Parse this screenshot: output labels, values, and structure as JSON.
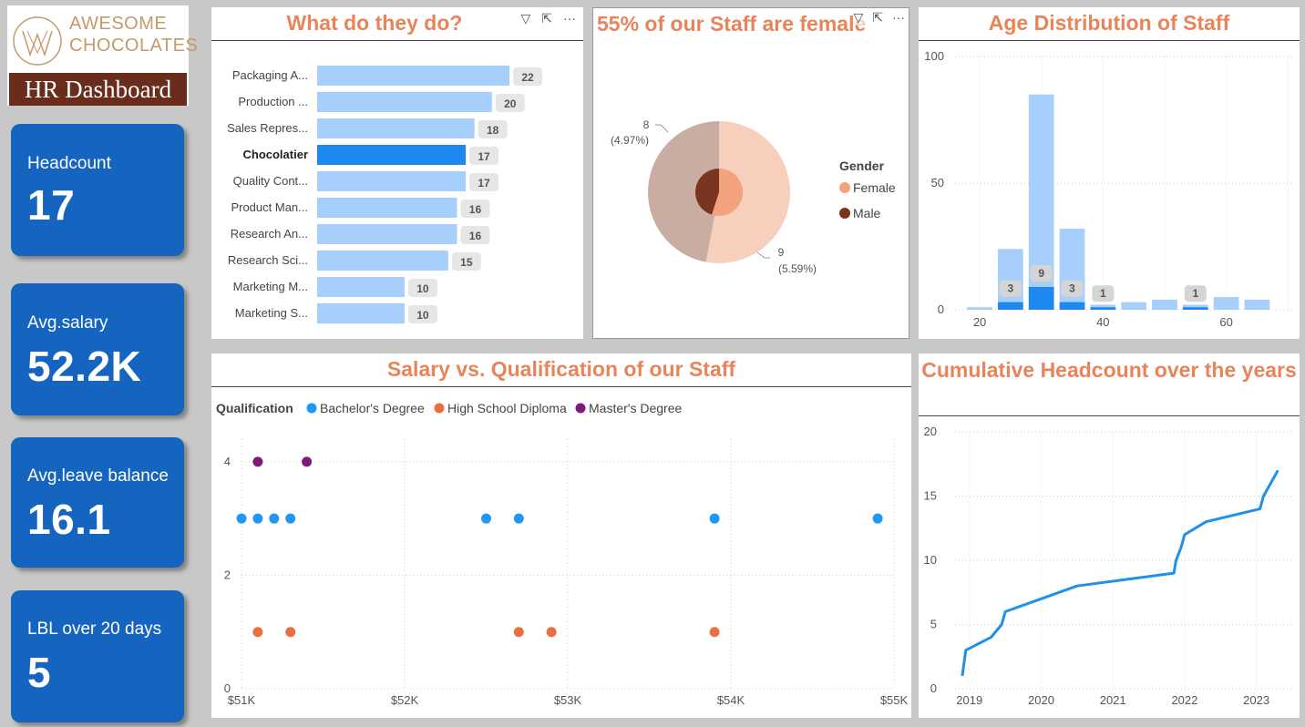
{
  "logo": {
    "brand_line1": "AWESOME",
    "brand_line2": "CHOCOLATES",
    "dashboard_title": "HR Dashboard"
  },
  "kpis": [
    {
      "label": "Headcount",
      "value": "17"
    },
    {
      "label": "Avg.salary",
      "value": "52.2K"
    },
    {
      "label": "Avg.leave balance",
      "value": "16.1"
    },
    {
      "label": "LBL over 20 days",
      "value": "5"
    }
  ],
  "colors": {
    "accent_title": "#e8845a",
    "kpi_blue": "#1565c0",
    "bar_light": "#a6cffb",
    "bar_selected": "#1e88f0",
    "female": "#f2a27c",
    "male": "#7a3520",
    "bachelor": "#2196f3",
    "highschool": "#e87040",
    "master": "#7b1b7b"
  },
  "roles_chart": {
    "title": "What do they do?",
    "icons": [
      "filter-icon",
      "focus-mode-icon",
      "more-options-icon"
    ],
    "chart_data": {
      "type": "bar",
      "orientation": "horizontal",
      "categories": [
        "Packaging A...",
        "Production ...",
        "Sales Repres...",
        "Chocolatier",
        "Quality Cont...",
        "Product Man...",
        "Research An...",
        "Research Sci...",
        "Marketing M...",
        "Marketing S..."
      ],
      "values": [
        22,
        20,
        18,
        17,
        17,
        16,
        16,
        15,
        10,
        10
      ],
      "selected": "Chocolatier",
      "xlim": [
        0,
        24
      ]
    }
  },
  "gender_chart": {
    "title": "55% of our Staff are female",
    "legend_title": "Gender",
    "chart_data": {
      "type": "pie",
      "series": [
        {
          "name": "Female",
          "outer_label_value": "9",
          "outer_label_pct": "(5.59%)"
        },
        {
          "name": "Male",
          "outer_label_value": "8",
          "outer_label_pct": "(4.97%)"
        }
      ],
      "outer_share": [
        0.5294,
        0.4706
      ],
      "inner_share": [
        0.55,
        0.45
      ]
    }
  },
  "age_chart": {
    "title": "Age Distribution of Staff",
    "chart_data": {
      "type": "bar",
      "x_ticks": [
        "20",
        "40",
        "60"
      ],
      "y_ticks": [
        "0",
        "50",
        "100"
      ],
      "xlim": [
        16,
        71
      ],
      "ylim": [
        0,
        100
      ],
      "bins": [
        {
          "x": 20,
          "total": 1,
          "highlight": 0,
          "label": ""
        },
        {
          "x": 25,
          "total": 24,
          "highlight": 3,
          "label": "3"
        },
        {
          "x": 30,
          "total": 85,
          "highlight": 9,
          "label": "9"
        },
        {
          "x": 35,
          "total": 32,
          "highlight": 3,
          "label": "3"
        },
        {
          "x": 40,
          "total": 2,
          "highlight": 1,
          "label": "1"
        },
        {
          "x": 45,
          "total": 3,
          "highlight": 0,
          "label": ""
        },
        {
          "x": 50,
          "total": 4,
          "highlight": 0,
          "label": ""
        },
        {
          "x": 55,
          "total": 2,
          "highlight": 1,
          "label": "1"
        },
        {
          "x": 60,
          "total": 5,
          "highlight": 0,
          "label": ""
        },
        {
          "x": 65,
          "total": 4,
          "highlight": 0,
          "label": ""
        }
      ]
    }
  },
  "salary_chart": {
    "title": "Salary vs. Qualification of our Staff",
    "legend_title": "Qualification",
    "chart_data": {
      "type": "scatter",
      "x_ticks": [
        "$51K",
        "$52K",
        "$53K",
        "$54K",
        "$55K"
      ],
      "y_ticks": [
        "0",
        "2",
        "4"
      ],
      "xlim": [
        51000,
        55000
      ],
      "ylim": [
        0,
        4.4
      ],
      "series": [
        {
          "name": "Bachelor's Degree",
          "points": [
            [
              51000,
              3
            ],
            [
              51100,
              3
            ],
            [
              51200,
              3
            ],
            [
              51300,
              3
            ],
            [
              52500,
              3
            ],
            [
              52700,
              3
            ],
            [
              53900,
              3
            ],
            [
              54900,
              3
            ]
          ]
        },
        {
          "name": "High School Diploma",
          "points": [
            [
              51100,
              1
            ],
            [
              51300,
              1
            ],
            [
              52700,
              1
            ],
            [
              52900,
              1
            ],
            [
              53900,
              1
            ]
          ]
        },
        {
          "name": "Master's Degree",
          "points": [
            [
              51100,
              4
            ],
            [
              51400,
              4
            ]
          ]
        }
      ]
    }
  },
  "cumulative_chart": {
    "title": "Cumulative Headcount over the years",
    "chart_data": {
      "type": "line",
      "x_ticks": [
        "2019",
        "2020",
        "2021",
        "2022",
        "2023"
      ],
      "y_ticks": [
        "0",
        "5",
        "10",
        "15",
        "20"
      ],
      "xlim": [
        2018.8,
        2023.5
      ],
      "ylim": [
        0,
        20
      ],
      "points": [
        [
          2018.9,
          1
        ],
        [
          2018.95,
          3
        ],
        [
          2019.3,
          4
        ],
        [
          2019.45,
          5
        ],
        [
          2019.5,
          6
        ],
        [
          2020.5,
          8
        ],
        [
          2021.85,
          9
        ],
        [
          2021.88,
          10
        ],
        [
          2021.95,
          11
        ],
        [
          2022.0,
          12
        ],
        [
          2022.3,
          13
        ],
        [
          2023.05,
          14
        ],
        [
          2023.1,
          15
        ],
        [
          2023.2,
          16
        ],
        [
          2023.3,
          17
        ]
      ]
    }
  }
}
